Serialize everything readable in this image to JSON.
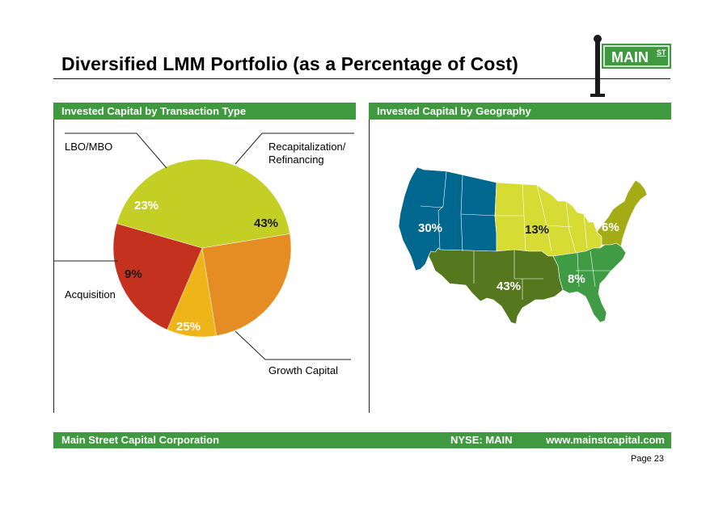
{
  "slide": {
    "title": "Diversified LMM Portfolio (as a Percentage of Cost)",
    "logo_text": "MAIN",
    "logo_superscript": "ST"
  },
  "sections": {
    "left_header": "Invested Capital by Transaction Type",
    "right_header": "Invested Capital by Geography"
  },
  "footer": {
    "company": "Main Street Capital Corporation",
    "ticker": "NYSE: MAIN",
    "website": "www.mainstcapital.com",
    "page": "Page 23"
  },
  "colors": {
    "brand_green": "#3f9a3f",
    "recap": "#c3cf25",
    "growth": "#e58c22",
    "acquisition": "#efb417",
    "lbo": "#c5311f",
    "west": "#00678f",
    "midwest": "#d7dc35",
    "northeast": "#a3ab15",
    "south_central": "#55781f",
    "southeast": "#3f9c45"
  },
  "chart_data": [
    {
      "type": "pie",
      "categories": [
        "Recapitalization/ Refinancing",
        "Growth Capital",
        "Acquisition",
        "LBO/MBO"
      ],
      "values": [
        43,
        25,
        9,
        23
      ],
      "labels": {
        "recap": "Recapitalization/",
        "recap_line2": "Refinancing",
        "growth": "Growth Capital",
        "acquisition": "Acquisition",
        "lbo": "LBO/MBO"
      },
      "value_labels": [
        "43%",
        "25%",
        "9%",
        "23%"
      ]
    },
    {
      "type": "map",
      "regions": [
        {
          "region": "west",
          "value": 30,
          "label": "30%"
        },
        {
          "region": "midwest",
          "value": 13,
          "label": "13%"
        },
        {
          "region": "northeast",
          "value": 6,
          "label": "6%"
        },
        {
          "region": "south_central",
          "value": 43,
          "label": "43%"
        },
        {
          "region": "southeast",
          "value": 8,
          "label": "8%"
        }
      ]
    }
  ]
}
